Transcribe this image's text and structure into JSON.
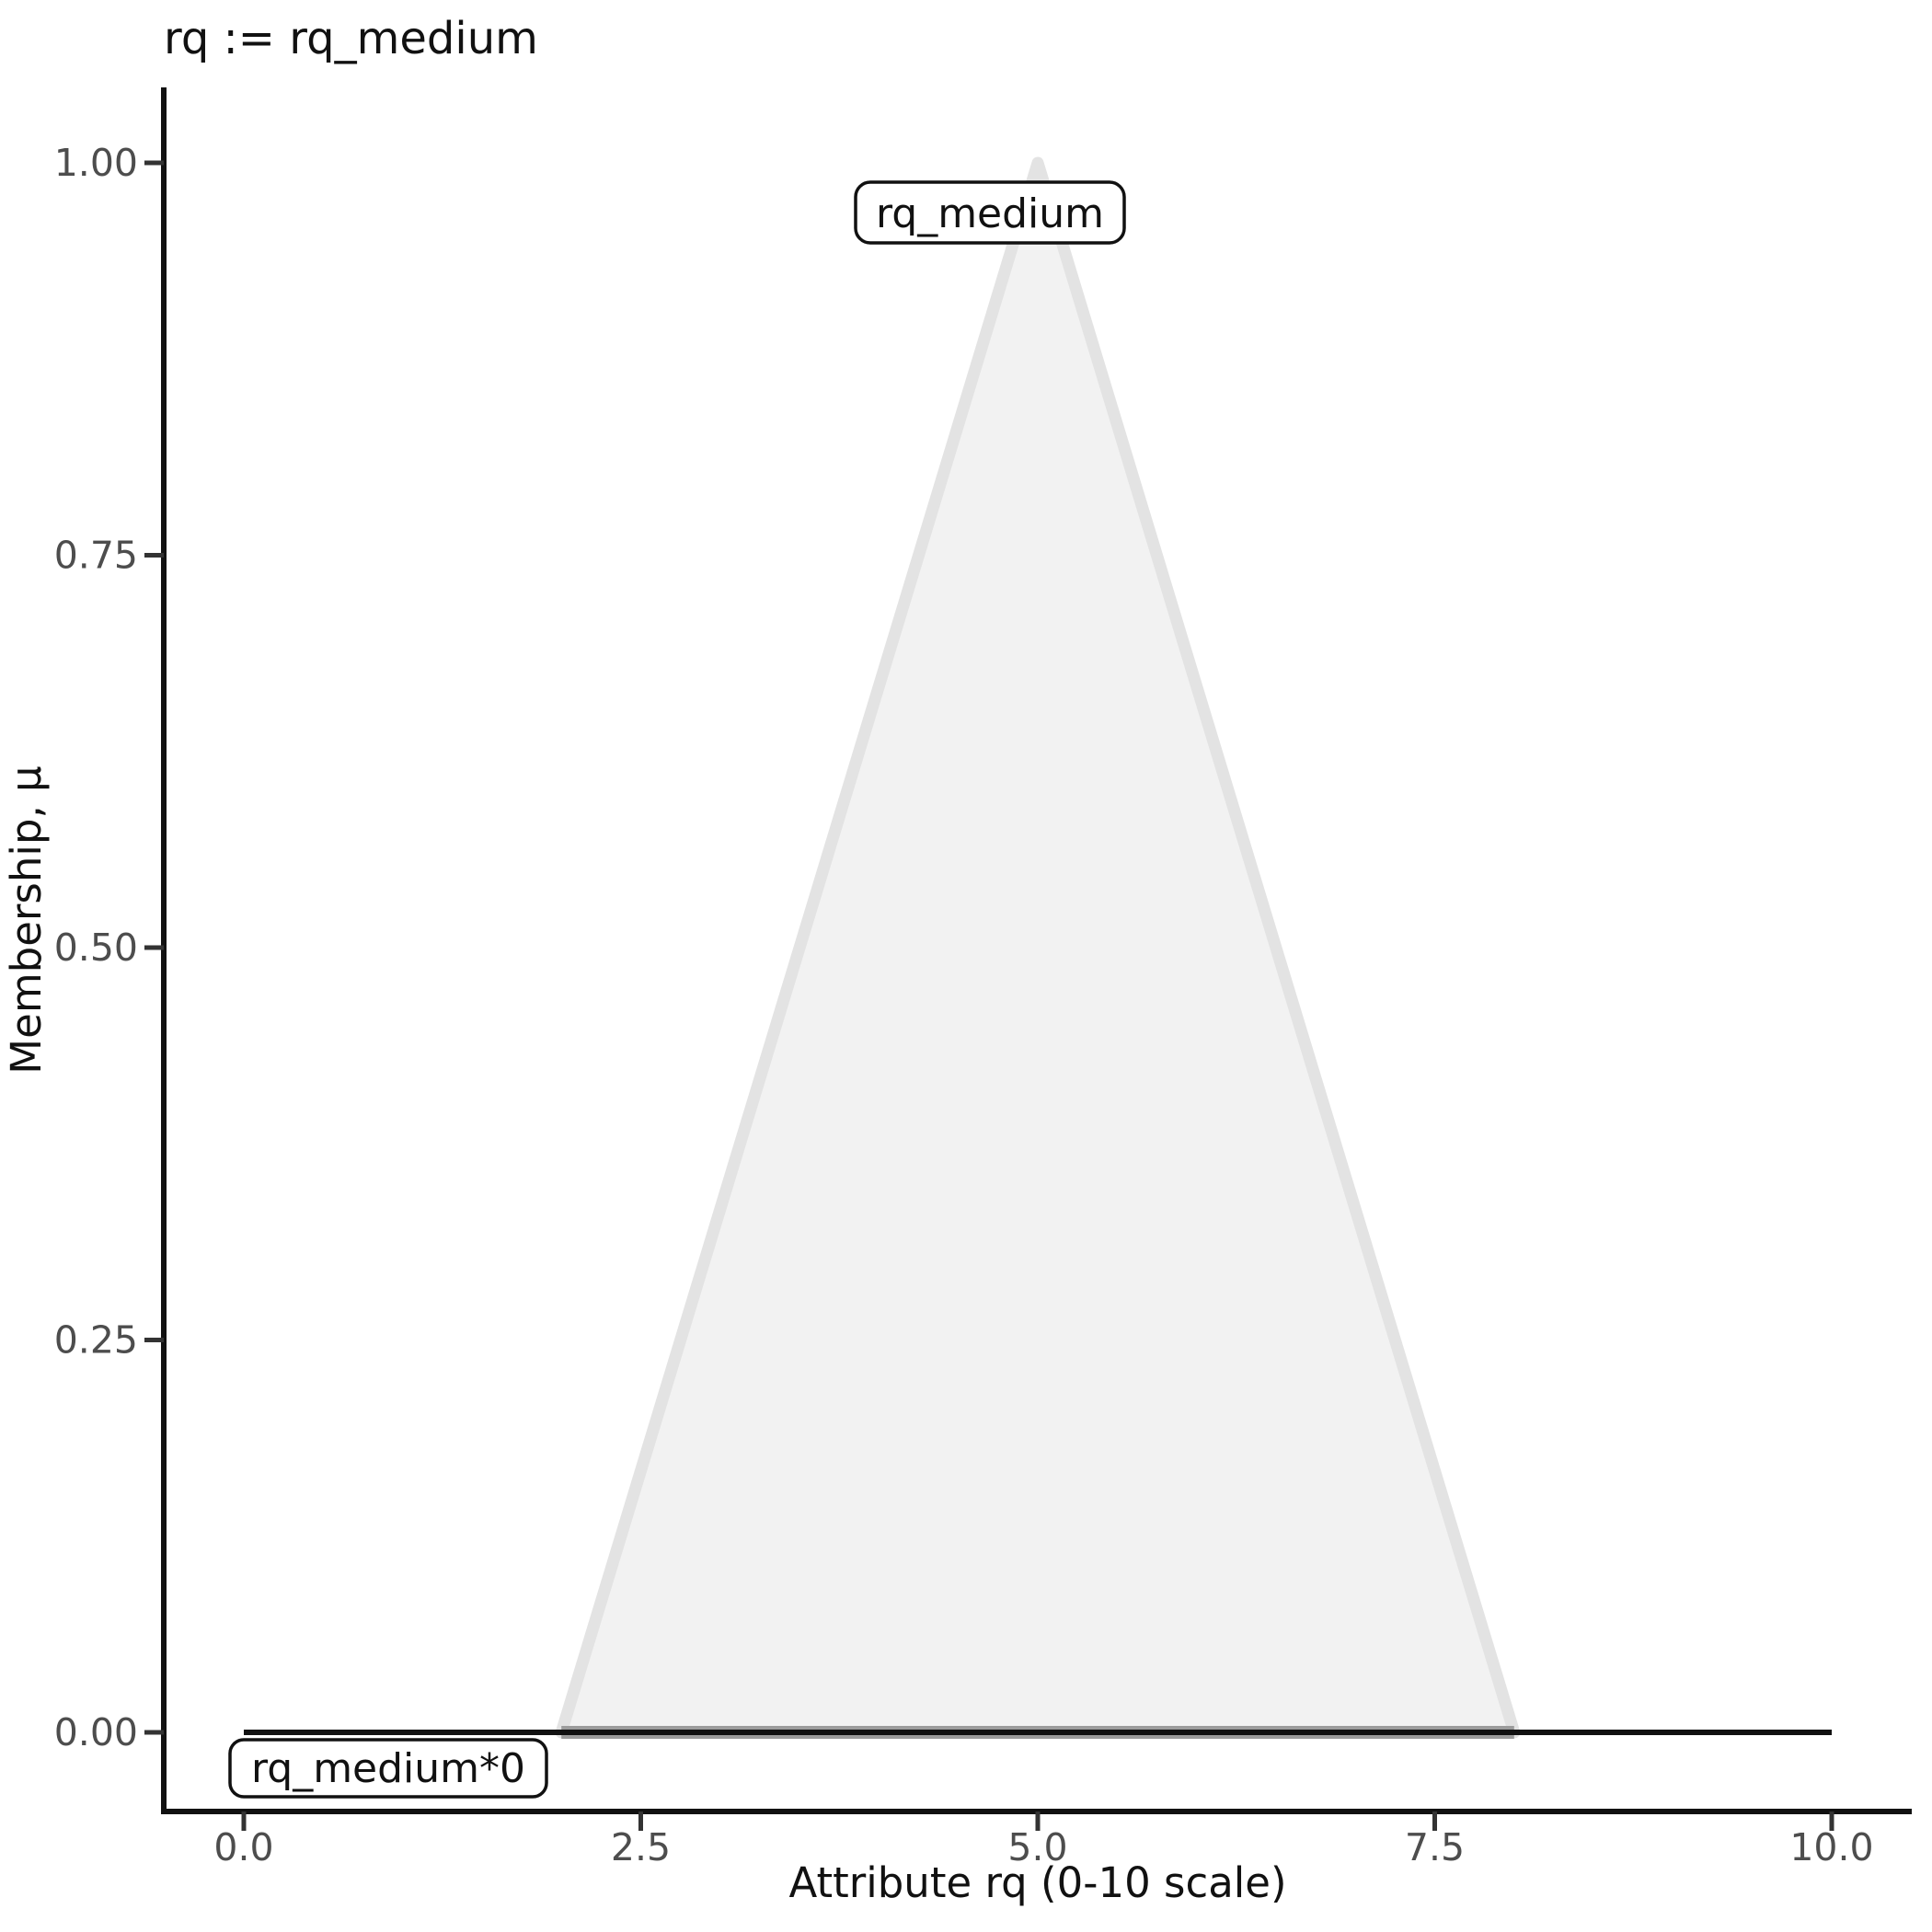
{
  "chart_data": {
    "type": "area",
    "title": "rq := rq_medium",
    "xlabel": "Attribute rq (0-10 scale)",
    "ylabel": "Membership, µ",
    "xlim": [
      0,
      10
    ],
    "ylim": [
      0,
      1
    ],
    "grid": false,
    "legend": "none",
    "x_ticks": [
      {
        "v": 0,
        "label": "0.0"
      },
      {
        "v": 2.5,
        "label": "2.5"
      },
      {
        "v": 5,
        "label": "5.0"
      },
      {
        "v": 7.5,
        "label": "7.5"
      },
      {
        "v": 10,
        "label": "10.0"
      }
    ],
    "y_ticks": [
      {
        "v": 0,
        "label": "0.00"
      },
      {
        "v": 0.25,
        "label": "0.25"
      },
      {
        "v": 0.5,
        "label": "0.50"
      },
      {
        "v": 0.75,
        "label": "0.75"
      },
      {
        "v": 1,
        "label": "1.00"
      }
    ],
    "series": [
      {
        "name": "rq_medium",
        "label": "rq_medium",
        "kind": "triangular-membership-area",
        "x": [
          2,
          5,
          8
        ],
        "y": [
          0,
          1,
          0
        ],
        "fill": "#F2F2F2",
        "stroke": "#E3E3E3"
      },
      {
        "name": "rq_medium*0",
        "label": "rq_medium*0",
        "kind": "line",
        "x": [
          0,
          10
        ],
        "y": [
          0,
          0
        ],
        "stroke": "#111111"
      }
    ],
    "annotations": [
      {
        "text": "rq_medium",
        "attached_to": "peak of triangle"
      },
      {
        "text": "rq_medium*0",
        "attached_to": "zero line, lower left"
      }
    ]
  },
  "colors": {
    "background": "#FFFFFF",
    "axis": "#111111",
    "tick_mark": "#333333",
    "tick_text": "#4D4D4D",
    "triangle_fill": "#F2F2F2",
    "triangle_stroke": "#E3E3E3",
    "base_overlap_gray": "#9C9C9C",
    "zero_line": "#111111"
  }
}
